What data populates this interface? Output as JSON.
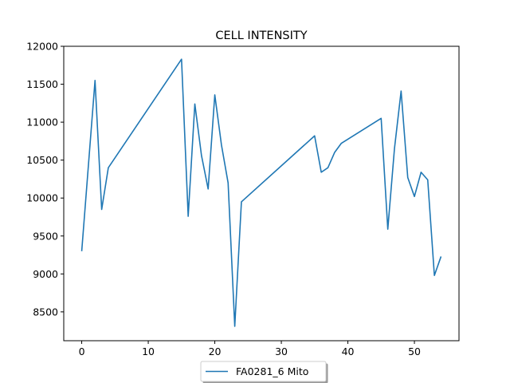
{
  "chart_data": {
    "type": "line",
    "title": "CELL INTENSITY",
    "xlabel": "",
    "ylabel": "",
    "xlim": [
      -2.7,
      56.7
    ],
    "ylim": [
      8120,
      12000
    ],
    "xticks": [
      0,
      10,
      20,
      30,
      40,
      50
    ],
    "yticks": [
      8500,
      9000,
      9500,
      10000,
      10500,
      11000,
      11500,
      12000
    ],
    "grid": false,
    "legend": {
      "placement": "bottom-center",
      "shadow": true
    },
    "colors": {
      "series": "#1f77b4",
      "axes": "#000000"
    },
    "series": [
      {
        "name": "FA0281_6 Mito",
        "x": [
          0,
          2,
          3,
          4,
          15,
          16,
          17,
          18,
          19,
          20,
          21,
          22,
          23,
          24,
          35,
          36,
          37,
          38,
          39,
          45,
          46,
          47,
          48,
          49,
          50,
          51,
          52,
          53,
          54
        ],
        "y": [
          9300,
          11550,
          9850,
          10400,
          11830,
          9760,
          11240,
          10560,
          10120,
          11360,
          10700,
          10200,
          8310,
          9950,
          10820,
          10340,
          10400,
          10600,
          10720,
          11050,
          9590,
          10650,
          11410,
          10270,
          10020,
          10340,
          10240,
          8980,
          9230
        ]
      }
    ]
  }
}
